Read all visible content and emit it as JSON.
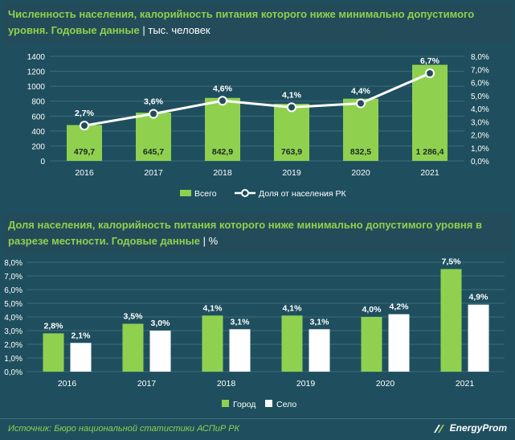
{
  "chart1": {
    "title": "Численность населения, калорийность питания которого ниже минимально допустимого уровня. Годовые данные",
    "separator": "|",
    "unit": "тыс. человек",
    "chart_data": {
      "type": "bar",
      "categories": [
        "2016",
        "2017",
        "2018",
        "2019",
        "2020",
        "2021"
      ],
      "series": [
        {
          "name": "Всего",
          "type": "bar",
          "axis": "left",
          "values": [
            479.7,
            645.7,
            842.9,
            763.9,
            832.5,
            1286.4
          ],
          "value_labels": [
            "479,7",
            "645,7",
            "842,9",
            "763,9",
            "832,5",
            "1 286,4"
          ]
        },
        {
          "name": "Доля от населения РК",
          "type": "line",
          "axis": "right",
          "values": [
            2.7,
            3.6,
            4.6,
            4.1,
            4.4,
            6.7
          ],
          "value_labels": [
            "2,7%",
            "3,6%",
            "4,6%",
            "4,1%",
            "4,4%",
            "6,7%"
          ]
        }
      ],
      "y_left": {
        "ylim": [
          0,
          1400
        ],
        "ticks": [
          "0",
          "200",
          "400",
          "600",
          "800",
          "1000",
          "1200",
          "1400"
        ]
      },
      "y_right": {
        "ylim": [
          0,
          8
        ],
        "ticks": [
          "0,0%",
          "1,0%",
          "2,0%",
          "3,0%",
          "4,0%",
          "5,0%",
          "6,0%",
          "7,0%",
          "8,0%"
        ]
      },
      "grid": true,
      "legend": "bottom",
      "colors": {
        "bar": "#8fd14f",
        "line": "#ffffff"
      }
    }
  },
  "chart2": {
    "title": "Доля населения, калорийность питания которого ниже минимально допустимого уровня в разрезе местности. Годовые данные",
    "separator": "|",
    "unit": "%",
    "chart_data": {
      "type": "bar",
      "categories": [
        "2016",
        "2017",
        "2018",
        "2019",
        "2020",
        "2021"
      ],
      "series": [
        {
          "name": "Город",
          "values": [
            2.8,
            3.5,
            4.1,
            4.1,
            4.0,
            7.5
          ],
          "value_labels": [
            "2,8%",
            "3,5%",
            "4,1%",
            "4,1%",
            "4,0%",
            "7,5%"
          ]
        },
        {
          "name": "Село",
          "values": [
            2.1,
            3.0,
            3.1,
            3.1,
            4.2,
            4.9
          ],
          "value_labels": [
            "2,1%",
            "3,0%",
            "3,1%",
            "3,1%",
            "4,2%",
            "4,9%"
          ]
        }
      ],
      "y": {
        "ylim": [
          0,
          8
        ],
        "ticks": [
          "0,0%",
          "1,0%",
          "2,0%",
          "3,0%",
          "4,0%",
          "5,0%",
          "6,0%",
          "7,0%",
          "8,0%"
        ]
      },
      "grid": true,
      "legend": "bottom",
      "colors": {
        "Город": "#8fd14f",
        "Село": "#ffffff"
      }
    }
  },
  "footer": {
    "source": "Источник: Бюро национальной статистики АСПиР РК",
    "logo_text": "EnergyProm"
  }
}
